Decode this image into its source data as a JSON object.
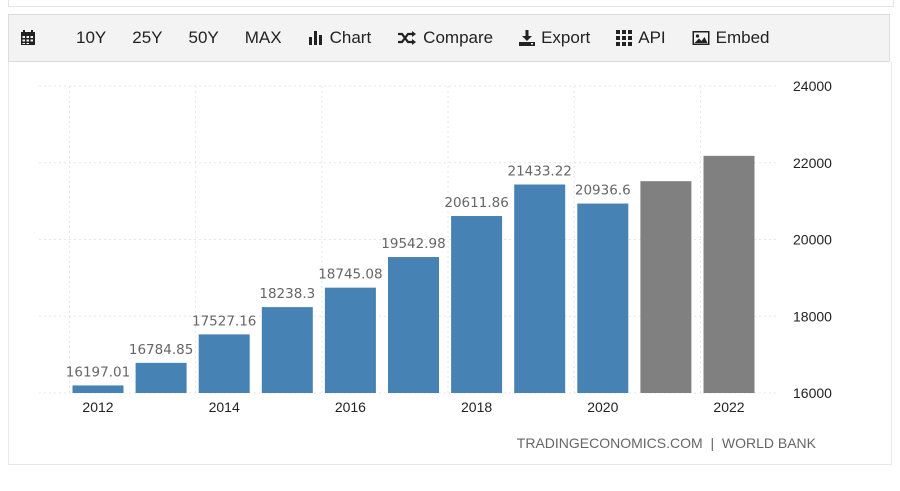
{
  "toolbar": {
    "items": [
      {
        "key": "calendar",
        "icon": "calendar-icon",
        "label": ""
      },
      {
        "key": "10y",
        "label": "10Y"
      },
      {
        "key": "25y",
        "label": "25Y"
      },
      {
        "key": "50y",
        "label": "50Y"
      },
      {
        "key": "max",
        "label": "MAX"
      },
      {
        "key": "chart",
        "icon": "bar-chart-icon",
        "label": "Chart"
      },
      {
        "key": "compare",
        "icon": "shuffle-icon",
        "label": "Compare"
      },
      {
        "key": "export",
        "icon": "download-icon",
        "label": "Export"
      },
      {
        "key": "api",
        "icon": "grid-icon",
        "label": "API"
      },
      {
        "key": "embed",
        "icon": "image-icon",
        "label": "Embed"
      }
    ]
  },
  "colors": {
    "actual_bar": "#4682b4",
    "forecast_bar": "#808080",
    "toolbar_bg": "#f3f3f3"
  },
  "source_text": "TRADINGECONOMICS.COM  |  WORLD BANK",
  "chart_data": {
    "type": "bar",
    "categories": [
      2012,
      2013,
      2014,
      2015,
      2016,
      2017,
      2018,
      2019,
      2020,
      2021,
      2022
    ],
    "x_tick_labels": [
      "2012",
      "2014",
      "2016",
      "2018",
      "2020",
      "2022"
    ],
    "series": [
      {
        "values": [
          16197.01,
          16784.85,
          17527.16,
          18238.3,
          18745.08,
          19542.98,
          20611.86,
          21433.22,
          20936.6,
          null,
          null
        ],
        "color": "#4682b4"
      },
      {
        "values": [
          null,
          null,
          null,
          null,
          null,
          null,
          null,
          null,
          null,
          21520,
          22180
        ],
        "color": "#808080"
      }
    ],
    "data_labels": [
      "16197.01",
      "16784.85",
      "17527.16",
      "18238.3",
      "18745.08",
      "19542.98",
      "20611.86",
      "21433.22",
      "20936.6",
      "",
      ""
    ],
    "y_ticks": [
      16000,
      18000,
      20000,
      22000,
      24000
    ],
    "ylim": [
      16000,
      24000
    ],
    "y_axis_side": "right",
    "grid": true,
    "title": "",
    "xlabel": "",
    "ylabel": ""
  }
}
